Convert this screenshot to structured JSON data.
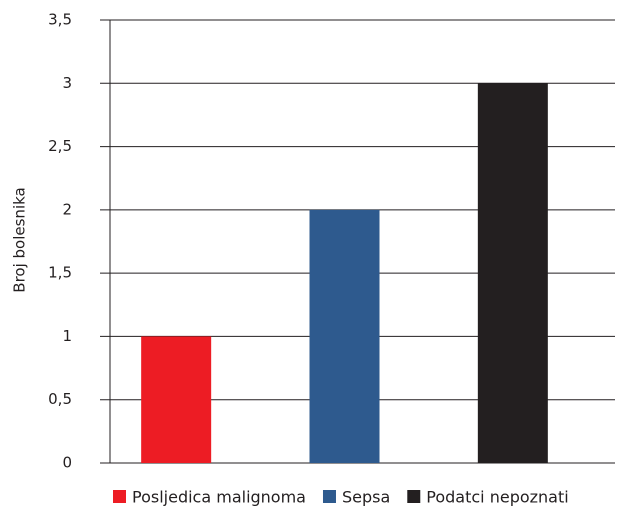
{
  "chart_data": {
    "type": "bar",
    "y_label": "Broj bolesnika",
    "categories": [
      null
    ],
    "series": [
      {
        "name": "Posljedica malignoma",
        "color": "#ed1c24",
        "values": [
          1
        ]
      },
      {
        "name": "Sepsa",
        "color": "#2e5a8e",
        "values": [
          2
        ]
      },
      {
        "name": "Podatci nepoznati",
        "color": "#231f20",
        "values": [
          3
        ]
      }
    ],
    "ylim": [
      0,
      3.5
    ],
    "yticks": [
      0,
      {
        "value": 0.5,
        "label": "0,5"
      },
      1,
      {
        "value": 1.5,
        "label": "1,5"
      },
      2,
      {
        "value": 2.5,
        "label": "2,5"
      },
      3,
      {
        "value": 3.5,
        "label": "3,5"
      }
    ],
    "grid": true,
    "legend": "bottom"
  }
}
